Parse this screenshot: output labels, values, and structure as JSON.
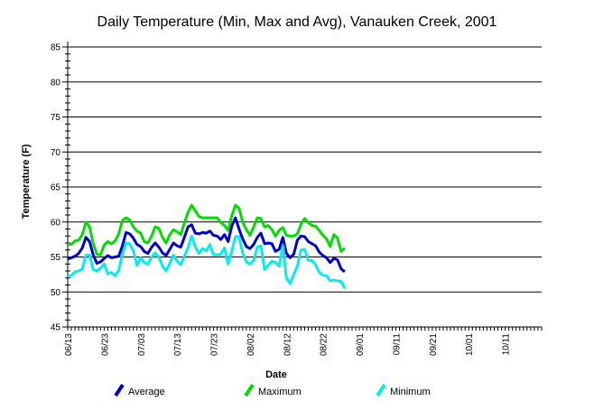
{
  "chart_data": {
    "type": "line",
    "title": "Daily Temperature (Min, Max and Avg), Vanauken Creek, 2001",
    "xlabel": "Date",
    "ylabel": "Temperature (F)",
    "ylim": [
      45,
      85
    ],
    "yticks": [
      45,
      50,
      55,
      60,
      65,
      70,
      75,
      80,
      85
    ],
    "xlim": [
      "06/13",
      "10/21"
    ],
    "xticks": [
      "06/13",
      "06/23",
      "07/03",
      "07/13",
      "07/23",
      "08/02",
      "08/12",
      "08/22",
      "09/01",
      "09/11",
      "09/21",
      "10/01",
      "10/11"
    ],
    "grid": "horizontal",
    "legend_position": "bottom",
    "x_start": "06/13",
    "series": [
      {
        "name": "Average",
        "color": "#0000cc",
        "values": [
          54.7,
          54.9,
          55.1,
          55.5,
          56.3,
          57.8,
          57.2,
          55.3,
          54.1,
          54.3,
          54.8,
          55.2,
          54.9,
          55.0,
          55.1,
          56.6,
          58.5,
          58.3,
          57.7,
          56.8,
          56.5,
          55.8,
          55.5,
          56.4,
          57.0,
          56.4,
          55.6,
          55.2,
          56.1,
          57.0,
          56.6,
          56.4,
          57.8,
          59.3,
          59.6,
          58.4,
          58.3,
          58.5,
          58.4,
          58.7,
          58.1,
          58.0,
          57.5,
          58.2,
          57.2,
          59.4,
          60.6,
          59.0,
          57.6,
          56.5,
          56.2,
          56.8,
          57.8,
          58.4,
          56.9,
          57.0,
          56.9,
          55.8,
          56.1,
          57.8,
          55.5,
          54.9,
          55.4,
          57.4,
          58.0,
          57.9,
          57.2,
          56.9,
          56.6,
          55.7,
          55.2,
          54.9,
          54.2,
          54.8,
          54.6,
          53.3,
          52.9
        ]
      },
      {
        "name": "Maximum",
        "color": "#00dd00",
        "values": [
          56.8,
          56.8,
          57.3,
          57.4,
          58.2,
          60.0,
          59.3,
          56.9,
          55.4,
          55.3,
          56.7,
          57.2,
          56.9,
          57.3,
          58.3,
          60.2,
          60.6,
          60.3,
          59.3,
          58.7,
          58.4,
          57.2,
          57.0,
          58.0,
          59.3,
          59.1,
          57.8,
          57.0,
          58.2,
          58.9,
          58.6,
          58.2,
          59.8,
          61.4,
          62.4,
          61.6,
          60.8,
          60.6,
          60.6,
          60.6,
          60.6,
          60.6,
          59.9,
          59.5,
          58.8,
          60.9,
          62.4,
          62.0,
          60.0,
          58.9,
          58.1,
          59.3,
          60.6,
          60.5,
          59.3,
          59.5,
          58.9,
          58.0,
          58.8,
          59.2,
          58.1,
          58.0,
          58.0,
          58.3,
          59.7,
          60.5,
          59.9,
          59.5,
          59.4,
          58.8,
          58.1,
          57.6,
          56.5,
          58.2,
          57.7,
          55.8,
          56.3
        ]
      },
      {
        "name": "Minimum",
        "color": "#00eeee",
        "values": [
          52.4,
          52.3,
          52.9,
          53.0,
          53.3,
          55.3,
          55.3,
          53.2,
          53.0,
          53.4,
          54.0,
          52.6,
          52.8,
          52.3,
          53.1,
          55.4,
          57.0,
          56.9,
          55.9,
          53.8,
          54.9,
          54.2,
          54.0,
          55.0,
          55.6,
          55.0,
          53.7,
          53.0,
          54.1,
          55.3,
          54.4,
          53.9,
          55.1,
          56.3,
          58.0,
          56.5,
          55.5,
          56.2,
          55.9,
          56.8,
          55.3,
          55.3,
          55.4,
          56.3,
          54.0,
          55.8,
          57.9,
          57.9,
          55.6,
          54.3,
          54.0,
          54.5,
          56.4,
          56.6,
          53.2,
          53.8,
          54.4,
          54.2,
          53.7,
          56.6,
          52.0,
          51.2,
          52.5,
          53.7,
          56.0,
          56.1,
          54.5,
          54.5,
          53.9,
          52.8,
          52.4,
          52.3,
          51.6,
          51.7,
          51.6,
          51.5,
          50.5
        ]
      }
    ]
  }
}
